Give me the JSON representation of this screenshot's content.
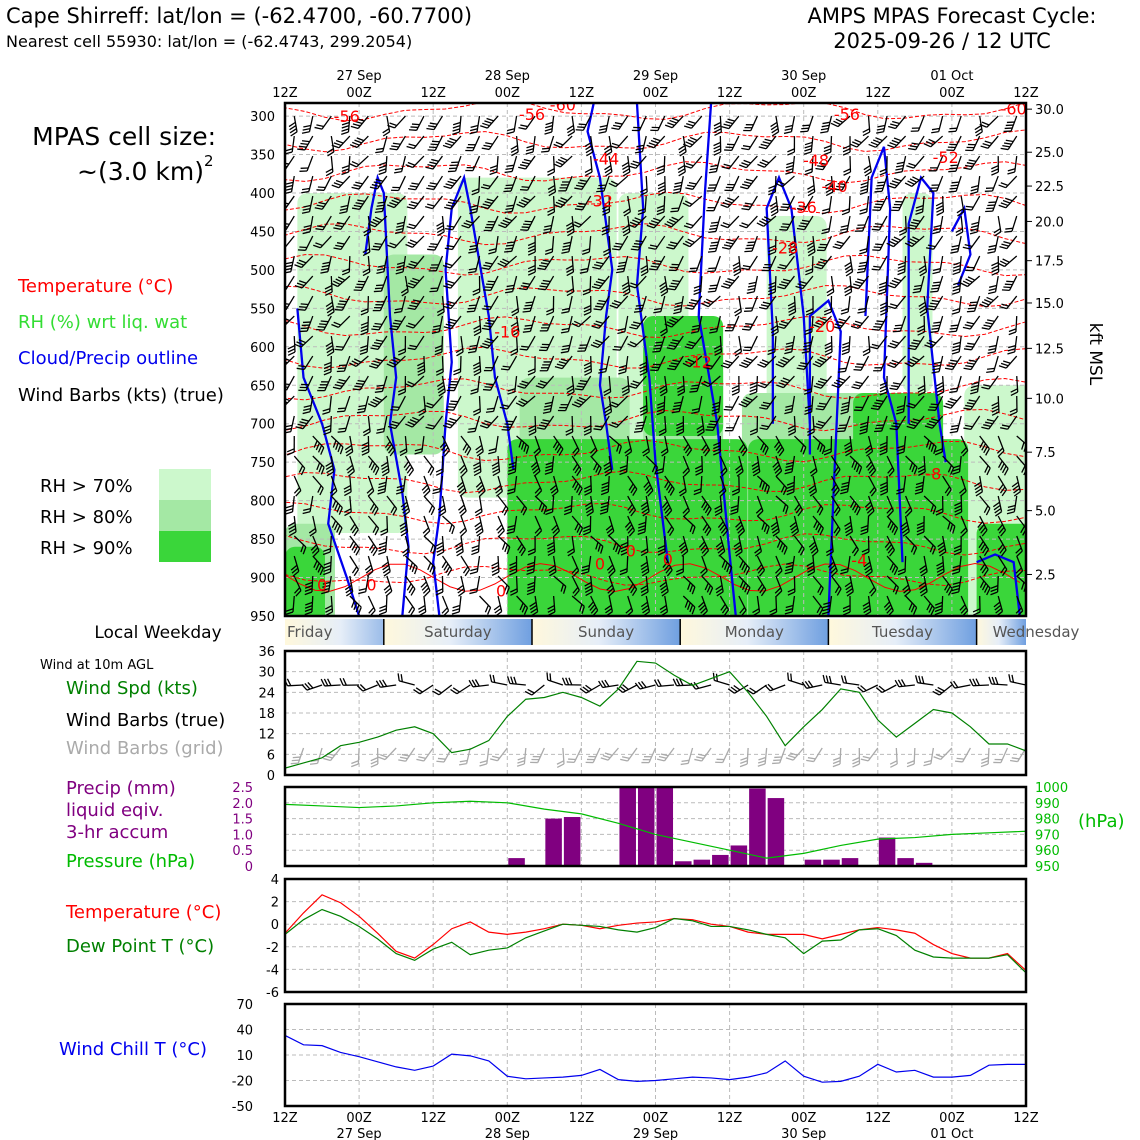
{
  "header": {
    "site": "Cape Shirreff: lat/lon = (-62.4700, -60.7700)",
    "cell": "Nearest cell 55930: lat/lon = (-62.4743, 299.2054)",
    "model_title": "AMPS MPAS Forecast Cycle:",
    "cycle": "2025-09-26 / 12 UTC"
  },
  "left_panel": {
    "cell_size_line1": "MPAS cell size:",
    "cell_size_line2": "~(3.0 km)",
    "cell_size_exp": "2",
    "legend": {
      "temperature": "Temperature (°C)",
      "rh": "RH (%) wrt liq. wat",
      "cloud": "Cloud/Precip outline",
      "barbs": "Wind Barbs (kts) (true)",
      "rh70": "RH > 70%",
      "rh80": "RH > 80%",
      "rh90": "RH > 90%"
    },
    "colors": {
      "rh70": "#ccf8cc",
      "rh80": "#a4e8a4",
      "rh90": "#3ad63a",
      "temp": "#ff0000",
      "cloud": "#0000ee"
    }
  },
  "time_axis": {
    "top_dates": [
      "27 Sep",
      "28 Sep",
      "29 Sep",
      "30 Sep",
      "01 Oct"
    ],
    "ticks": [
      "12Z",
      "00Z",
      "12Z",
      "00Z",
      "12Z",
      "00Z",
      "12Z",
      "00Z",
      "12Z",
      "00Z",
      "12Z"
    ]
  },
  "weekday": {
    "label": "Local Weekday",
    "days": [
      "Friday",
      "Saturday",
      "Sunday",
      "Monday",
      "Tuesday",
      "Wednesday"
    ]
  },
  "chart_data": [
    {
      "type": "heatmap",
      "name": "vertical cross-section",
      "ylabel_left": "hPa",
      "ylabel_right": "kft MSL",
      "pressure_ticks": [
        300,
        350,
        400,
        450,
        500,
        550,
        600,
        650,
        700,
        750,
        800,
        850,
        900,
        950
      ],
      "pressure_range": [
        283,
        950
      ],
      "height_ticks": [
        "30.0",
        "25.0",
        "22.5",
        "20.0",
        "17.5",
        "15.0",
        "12.5",
        "10.0",
        "7.5",
        "5.0",
        "2.5"
      ],
      "height_tick_hpa": [
        291,
        347,
        391,
        437,
        488,
        543,
        602,
        667,
        737,
        813,
        896
      ],
      "temperature_labels": [
        {
          "text": "-56",
          "time_h": 10,
          "hpa": 300
        },
        {
          "text": "-56",
          "time_h": 40,
          "hpa": 297
        },
        {
          "text": "-60",
          "time_h": 45,
          "hpa": 285
        },
        {
          "text": "-56",
          "time_h": 91,
          "hpa": 297
        },
        {
          "text": "-60",
          "time_h": 118,
          "hpa": 290
        },
        {
          "text": "-44",
          "time_h": 52,
          "hpa": 355
        },
        {
          "text": "-48",
          "time_h": 86,
          "hpa": 357
        },
        {
          "text": "-52",
          "time_h": 107,
          "hpa": 353
        },
        {
          "text": "-40",
          "time_h": 89,
          "hpa": 391
        },
        {
          "text": "-32",
          "time_h": 51,
          "hpa": 410
        },
        {
          "text": "-36",
          "time_h": 84,
          "hpa": 418
        },
        {
          "text": "-28",
          "time_h": 81,
          "hpa": 471
        },
        {
          "text": "-20",
          "time_h": 87,
          "hpa": 573
        },
        {
          "text": "-16",
          "time_h": 36,
          "hpa": 580
        },
        {
          "text": "-12",
          "time_h": 67,
          "hpa": 619
        },
        {
          "text": "-8",
          "time_h": 105,
          "hpa": 765
        },
        {
          "text": "-4",
          "time_h": 93,
          "hpa": 877
        },
        {
          "text": "0",
          "time_h": 56,
          "hpa": 865
        },
        {
          "text": "0",
          "time_h": 62,
          "hpa": 876
        },
        {
          "text": "0",
          "time_h": 51,
          "hpa": 882
        },
        {
          "text": "0",
          "time_h": 35,
          "hpa": 917
        },
        {
          "text": "0",
          "time_h": 6,
          "hpa": 909
        },
        {
          "text": "0",
          "time_h": 14,
          "hpa": 909
        }
      ]
    },
    {
      "type": "line",
      "name": "wind speed 10m",
      "title": "Wind at 10m AGL",
      "ylabel": "Wind Spd (kts)",
      "label_barbs_true": "Wind Barbs (true)",
      "label_barbs_grid": "Wind Barbs (grid)",
      "ylim": [
        0,
        36
      ],
      "yticks": [
        0,
        6,
        12,
        18,
        24,
        30,
        36
      ],
      "x_hours": [
        0,
        3,
        6,
        9,
        12,
        15,
        18,
        21,
        24,
        27,
        30,
        33,
        36,
        39,
        42,
        45,
        48,
        51,
        54,
        57,
        60,
        63,
        66,
        69,
        72,
        75,
        78,
        81,
        84,
        87,
        90,
        93,
        96,
        99,
        102,
        105,
        108,
        111,
        114,
        117,
        120
      ],
      "values": [
        2,
        3.5,
        5,
        8.5,
        9.5,
        11,
        13,
        14,
        12,
        6.5,
        7.5,
        10,
        17,
        22,
        22.5,
        24,
        22.5,
        20,
        25,
        33,
        32.5,
        29,
        26,
        28,
        30,
        24,
        17,
        8.5,
        14,
        19,
        25,
        24,
        16,
        11,
        15,
        19,
        18,
        14,
        9,
        9,
        7
      ]
    },
    {
      "type": "bar",
      "name": "precipitation and pressure",
      "ylabel": "Precip (mm)",
      "ylabel_line2": "liquid eqiv.",
      "ylabel_line3": "3-hr accum",
      "y2label": "Pressure (hPa)",
      "y2unit": "(hPa)",
      "ylim": [
        0,
        2.5
      ],
      "yticks": [
        "0",
        "0.5",
        "1.0",
        "1.5",
        "2.0",
        "2.5"
      ],
      "y2lim": [
        950,
        1000
      ],
      "y2ticks": [
        "950",
        "960",
        "970",
        "980",
        "990",
        "1000"
      ],
      "bar_hours": [
        36,
        42,
        45,
        54,
        57,
        60,
        63,
        66,
        69,
        72,
        75,
        78,
        84,
        87,
        90,
        96,
        99,
        102
      ],
      "bar_values": [
        0.25,
        1.5,
        1.55,
        2.5,
        2.5,
        2.5,
        0.15,
        0.2,
        0.35,
        0.65,
        2.45,
        2.15,
        0.2,
        0.2,
        0.25,
        0.9,
        0.25,
        0.1
      ],
      "pressure_hours": [
        0,
        6,
        12,
        18,
        24,
        30,
        36,
        42,
        48,
        54,
        60,
        66,
        72,
        78,
        84,
        90,
        96,
        102,
        108,
        114,
        120
      ],
      "pressure_values": [
        989,
        988,
        987,
        988,
        990,
        991,
        990,
        986,
        983,
        977,
        970,
        965,
        960,
        955,
        958,
        963,
        967,
        968,
        970,
        971,
        972
      ]
    },
    {
      "type": "line",
      "name": "temperature and dew point",
      "ylabel": "Temperature (°C)",
      "y2label": "Dew Point T (°C)",
      "ylim": [
        -6,
        4
      ],
      "yticks": [
        -6,
        -4,
        -2,
        0,
        2,
        4
      ],
      "series": [
        {
          "name": "Temperature",
          "color": "#ff0000",
          "x_hours": [
            0,
            3,
            6,
            9,
            12,
            15,
            18,
            21,
            24,
            27,
            30,
            33,
            36,
            39,
            42,
            45,
            48,
            51,
            54,
            57,
            60,
            63,
            66,
            69,
            72,
            75,
            78,
            81,
            84,
            87,
            90,
            93,
            96,
            99,
            102,
            105,
            108,
            111,
            114,
            117,
            120
          ],
          "values": [
            -0.8,
            1.0,
            2.6,
            1.9,
            0.7,
            -0.8,
            -2.4,
            -3.0,
            -1.8,
            -0.4,
            0.2,
            -0.7,
            -0.9,
            -0.7,
            -0.4,
            0.0,
            -0.1,
            -0.4,
            -0.1,
            0.1,
            0.2,
            0.5,
            0.4,
            0.0,
            -0.2,
            -0.7,
            -0.9,
            -0.9,
            -0.9,
            -1.3,
            -0.9,
            -0.5,
            -0.3,
            -0.5,
            -0.8,
            -1.8,
            -2.6,
            -3.0,
            -3.0,
            -2.6,
            -4.1
          ]
        },
        {
          "name": "Dew Point",
          "color": "#008000",
          "x_hours": [
            0,
            3,
            6,
            9,
            12,
            15,
            18,
            21,
            24,
            27,
            30,
            33,
            36,
            39,
            42,
            45,
            48,
            51,
            54,
            57,
            60,
            63,
            66,
            69,
            72,
            75,
            78,
            81,
            84,
            87,
            90,
            93,
            96,
            99,
            102,
            105,
            108,
            111,
            114,
            117,
            120
          ],
          "values": [
            -0.9,
            0.4,
            1.3,
            0.7,
            -0.2,
            -1.3,
            -2.6,
            -3.2,
            -2.2,
            -1.6,
            -2.7,
            -2.3,
            -2.1,
            -1.2,
            -0.6,
            0.0,
            -0.1,
            -0.2,
            -0.5,
            -0.7,
            -0.3,
            0.5,
            0.3,
            -0.2,
            -0.2,
            -0.5,
            -0.9,
            -1.2,
            -2.6,
            -1.5,
            -1.4,
            -0.5,
            -0.4,
            -1.0,
            -2.3,
            -2.9,
            -3.0,
            -3.0,
            -3.0,
            -2.7,
            -4.3
          ]
        }
      ]
    },
    {
      "type": "line",
      "name": "wind chill",
      "ylabel": "Wind Chill T (°C)",
      "ylim": [
        -50,
        70
      ],
      "yticks": [
        -50,
        -20,
        10,
        40,
        70
      ],
      "x_hours": [
        0,
        3,
        6,
        9,
        12,
        15,
        18,
        21,
        24,
        27,
        30,
        33,
        36,
        39,
        42,
        45,
        48,
        51,
        54,
        57,
        60,
        63,
        66,
        69,
        72,
        75,
        78,
        81,
        84,
        87,
        90,
        93,
        96,
        99,
        102,
        105,
        108,
        111,
        114,
        117,
        120
      ],
      "values": [
        33,
        22,
        21,
        13,
        8,
        2,
        -4,
        -8,
        -3,
        11,
        9,
        3,
        -15,
        -18,
        -17,
        -16,
        -14,
        -7,
        -19,
        -21,
        -20,
        -18,
        -16,
        -17,
        -19,
        -16,
        -11,
        3,
        -15,
        -22,
        -21,
        -15,
        -1,
        -10,
        -8,
        -16,
        -16,
        -14,
        -2,
        -1,
        -1
      ]
    }
  ]
}
